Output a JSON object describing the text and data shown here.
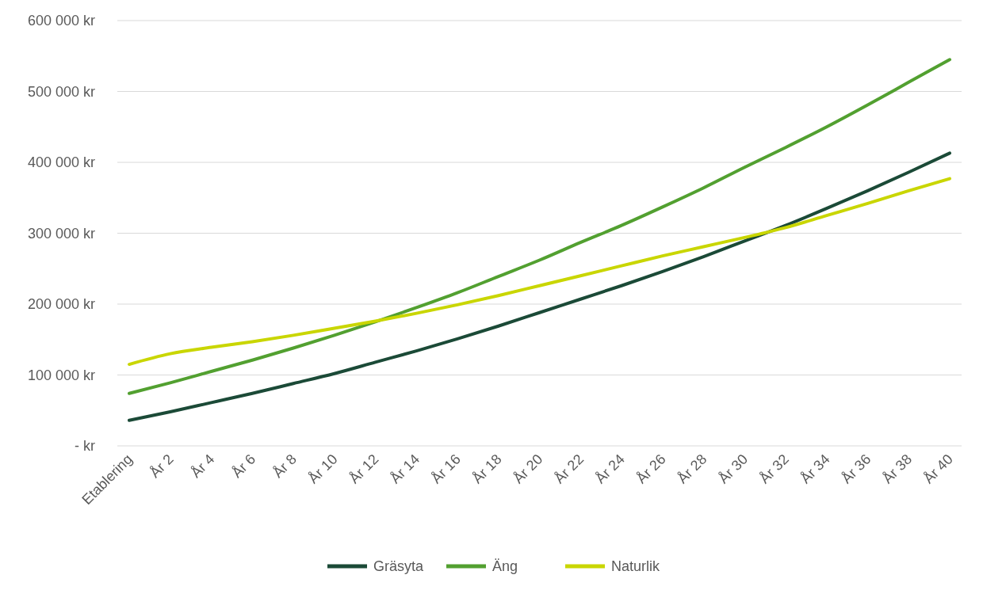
{
  "chart_data": {
    "type": "line",
    "categories": [
      "Etablering",
      "År 2",
      "År 4",
      "År 6",
      "År 8",
      "År 10",
      "År 12",
      "År 14",
      "År 16",
      "År 18",
      "År 20",
      "År 22",
      "År 24",
      "År 26",
      "År 28",
      "År 30",
      "År 32",
      "År 34",
      "År 36",
      "År 38",
      "År 40"
    ],
    "series": [
      {
        "name": "Gräsyta",
        "color": "#1b4a37",
        "values": [
          36000,
          48000,
          61000,
          74000,
          88000,
          102000,
          118000,
          134000,
          151000,
          169000,
          188000,
          207000,
          226000,
          246000,
          267000,
          289000,
          311000,
          335000,
          360000,
          386000,
          413000
        ]
      },
      {
        "name": "Äng",
        "color": "#52a030",
        "values": [
          74000,
          89000,
          105000,
          121000,
          138000,
          156000,
          175000,
          195000,
          216000,
          239000,
          262000,
          287000,
          311000,
          337000,
          364000,
          393000,
          421000,
          450000,
          481000,
          513000,
          545000
        ]
      },
      {
        "name": "Naturlik",
        "color": "#c9d600",
        "values": [
          115000,
          130000,
          139000,
          147000,
          156000,
          166000,
          176000,
          187000,
          199000,
          212000,
          226000,
          240000,
          254000,
          268000,
          281000,
          294000,
          308000,
          325000,
          342000,
          360000,
          377000
        ]
      }
    ],
    "ylim": [
      0,
      600000
    ],
    "yticks": [
      {
        "value": 0,
        "label": "-   kr"
      },
      {
        "value": 100000,
        "label": "100 000 kr"
      },
      {
        "value": 200000,
        "label": "200 000 kr"
      },
      {
        "value": 300000,
        "label": "300 000 kr"
      },
      {
        "value": 400000,
        "label": "400 000 kr"
      },
      {
        "value": 500000,
        "label": "500 000 kr"
      },
      {
        "value": 600000,
        "label": "600 000 kr"
      }
    ],
    "grid": "y",
    "legend": "bottom",
    "line_style": "solid",
    "marker": "none"
  }
}
